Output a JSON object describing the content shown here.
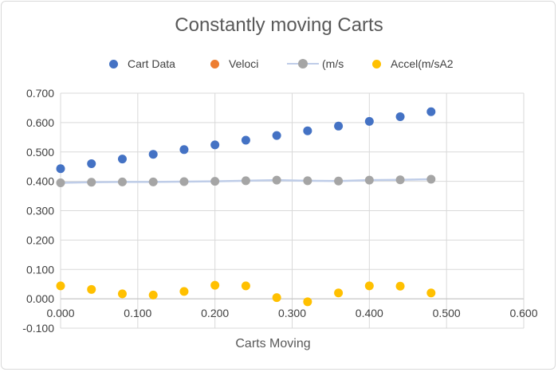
{
  "chart_data": {
    "type": "scatter",
    "title": "Constantly moving Carts",
    "xlabel": "Carts Moving",
    "ylabel": "",
    "xlim": [
      0,
      0.6
    ],
    "ylim": [
      -0.1,
      0.7
    ],
    "x_ticks": [
      "0.000",
      "0.100",
      "0.200",
      "0.300",
      "0.400",
      "0.500",
      "0.600"
    ],
    "y_ticks": [
      "-0.100",
      "0.000",
      "0.100",
      "0.200",
      "0.300",
      "0.400",
      "0.500",
      "0.600",
      "0.700"
    ],
    "grid": true,
    "legend_position": "top",
    "series": [
      {
        "name": "Cart Data",
        "color": "#4472c4",
        "marker": "circle",
        "line": false,
        "x": [
          0.0,
          0.04,
          0.08,
          0.12,
          0.16,
          0.2,
          0.24,
          0.28,
          0.32,
          0.36,
          0.4,
          0.44,
          0.48
        ],
        "y": [
          0.443,
          0.46,
          0.476,
          0.492,
          0.508,
          0.524,
          0.54,
          0.556,
          0.572,
          0.588,
          0.604,
          0.62,
          0.637
        ]
      },
      {
        "name": "Veloci",
        "color": "#ed7d31",
        "marker": "circle",
        "line": false,
        "x": [],
        "y": []
      },
      {
        "name": "(m/s",
        "color": "#a5a5a5",
        "line_color": "#bfcde8",
        "marker": "circle",
        "line": true,
        "x": [
          0.0,
          0.04,
          0.08,
          0.12,
          0.16,
          0.2,
          0.24,
          0.28,
          0.32,
          0.36,
          0.4,
          0.44,
          0.48
        ],
        "y": [
          0.395,
          0.397,
          0.398,
          0.398,
          0.399,
          0.4,
          0.402,
          0.404,
          0.402,
          0.401,
          0.404,
          0.405,
          0.407
        ]
      },
      {
        "name": "Accel(m/sA2",
        "color": "#ffc000",
        "marker": "circle",
        "line": false,
        "x": [
          0.0,
          0.04,
          0.08,
          0.12,
          0.16,
          0.2,
          0.24,
          0.28,
          0.32,
          0.36,
          0.4,
          0.44,
          0.48
        ],
        "y": [
          0.044,
          0.032,
          0.017,
          0.013,
          0.025,
          0.046,
          0.044,
          0.004,
          -0.01,
          0.02,
          0.044,
          0.043,
          0.02
        ]
      }
    ]
  }
}
